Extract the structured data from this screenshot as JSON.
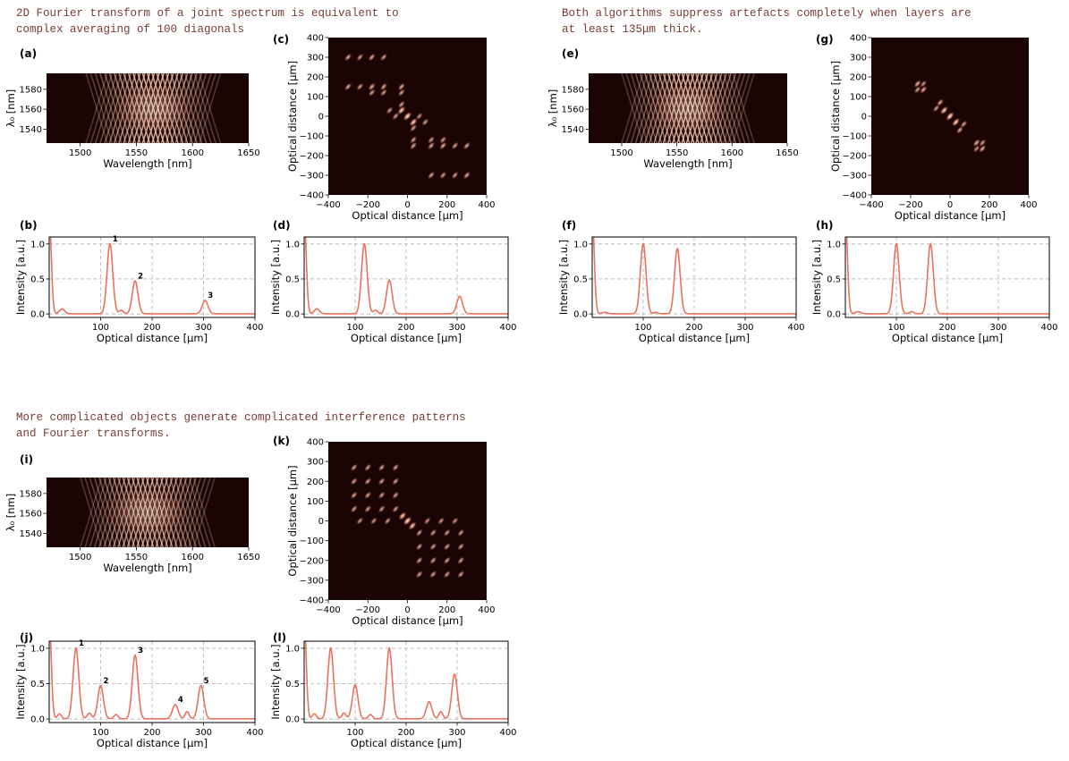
{
  "captions": {
    "top_left": "2D Fourier transform of a joint spectrum is equivalent to\ncomplex averaging of 100 diagonals",
    "top_right": "Both algorithms suppress artefacts completely when layers are\nat least 135μm thick.",
    "bottom_left": "More complicated objects generate complicated interference patterns\nand Fourier transforms."
  },
  "colors": {
    "line": "#e8735c",
    "map_background": "#1a0504",
    "map_peak": "#ffe6d2",
    "grid": "#b0b0b0"
  },
  "chart_data": [
    {
      "id": "a",
      "label": "(a)",
      "type": "heatmap",
      "xlabel": "Wavelength [nm]",
      "ylabel": "λ₀ [nm]",
      "xlim": [
        1470,
        1650
      ],
      "ylim": [
        1526,
        1596
      ],
      "xticks": [
        1500,
        1550,
        1600,
        1650
      ],
      "yticks": [
        1540,
        1560,
        1580
      ],
      "fringes": 4,
      "center": 1565,
      "width": 55
    },
    {
      "id": "b",
      "label": "(b)",
      "type": "line",
      "xlabel": "Optical distance [μm]",
      "ylabel": "Intensity [a.u.]",
      "xlim": [
        0,
        400
      ],
      "ylim": [
        -0.05,
        1.1
      ],
      "xticks": [
        100,
        200,
        300,
        400
      ],
      "yticks": [
        0.0,
        0.5,
        1.0
      ],
      "grid": true,
      "peaks": [
        {
          "x": 118,
          "y": 1.0,
          "w": 5.5,
          "label": "1"
        },
        {
          "x": 167,
          "y": 0.47,
          "w": 5.5,
          "label": "2"
        },
        {
          "x": 303,
          "y": 0.19,
          "w": 5.5,
          "label": "3"
        }
      ],
      "minor": [
        {
          "x": 25,
          "y": 0.07,
          "w": 5
        },
        {
          "x": 140,
          "y": 0.05,
          "w": 4
        }
      ]
    },
    {
      "id": "c",
      "label": "(c)",
      "type": "heatmap",
      "xlabel": "Optical distance [μm]",
      "ylabel": "Optical distance [μm]",
      "xlim": [
        -400,
        400
      ],
      "ylim": [
        -400,
        400
      ],
      "xticks": [
        -400,
        -200,
        0,
        200,
        400
      ],
      "yticks": [
        -400,
        -300,
        -200,
        -100,
        0,
        100,
        200,
        300,
        400
      ],
      "spots": [
        [
          0,
          0,
          1.0
        ],
        [
          -30,
          30,
          0.85
        ],
        [
          30,
          -30,
          0.85
        ],
        [
          -300,
          300,
          0.55
        ],
        [
          -240,
          300,
          0.5
        ],
        [
          -180,
          300,
          0.55
        ],
        [
          -120,
          300,
          0.5
        ],
        [
          -300,
          150,
          0.55
        ],
        [
          -240,
          150,
          0.5
        ],
        [
          -180,
          150,
          0.6
        ],
        [
          -120,
          150,
          0.55
        ],
        [
          -180,
          120,
          0.5
        ],
        [
          -120,
          120,
          0.5
        ],
        [
          -30,
          150,
          0.55
        ],
        [
          -30,
          120,
          0.5
        ],
        [
          -90,
          30,
          0.5
        ],
        [
          -30,
          60,
          0.5
        ],
        [
          -60,
          0,
          0.5
        ],
        [
          90,
          -30,
          0.5
        ],
        [
          30,
          -60,
          0.5
        ],
        [
          60,
          0,
          0.45
        ],
        [
          120,
          -150,
          0.55
        ],
        [
          180,
          -150,
          0.6
        ],
        [
          120,
          -120,
          0.5
        ],
        [
          180,
          -120,
          0.5
        ],
        [
          240,
          -150,
          0.5
        ],
        [
          300,
          -150,
          0.55
        ],
        [
          30,
          -150,
          0.55
        ],
        [
          30,
          -120,
          0.5
        ],
        [
          120,
          -300,
          0.55
        ],
        [
          180,
          -300,
          0.5
        ],
        [
          240,
          -300,
          0.5
        ],
        [
          300,
          -300,
          0.55
        ]
      ]
    },
    {
      "id": "d",
      "label": "(d)",
      "type": "line",
      "xlabel": "Optical distance [μm]",
      "ylabel": "Intensity [a.u.]",
      "xlim": [
        0,
        400
      ],
      "ylim": [
        -0.05,
        1.1
      ],
      "xticks": [
        100,
        200,
        300,
        400
      ],
      "yticks": [
        0.0,
        0.5,
        1.0
      ],
      "grid": true,
      "peaks": [
        {
          "x": 118,
          "y": 1.0,
          "w": 5.5
        },
        {
          "x": 167,
          "y": 0.48,
          "w": 5.5
        },
        {
          "x": 305,
          "y": 0.25,
          "w": 5.5
        }
      ],
      "minor": [
        {
          "x": 25,
          "y": 0.07,
          "w": 5
        },
        {
          "x": 140,
          "y": 0.05,
          "w": 4
        }
      ]
    },
    {
      "id": "e",
      "label": "(e)",
      "type": "heatmap",
      "xlabel": "Wavelength [nm]",
      "ylabel": "λ₀ [nm]",
      "xlim": [
        1470,
        1650
      ],
      "ylim": [
        1526,
        1596
      ],
      "xticks": [
        1500,
        1550,
        1600,
        1650
      ],
      "yticks": [
        1540,
        1560,
        1580
      ],
      "fringes": 3,
      "center": 1560,
      "width": 55
    },
    {
      "id": "f",
      "label": "(f)",
      "type": "line",
      "xlabel": "Optical distance [μm]",
      "ylabel": "Intensity [a.u.]",
      "xlim": [
        0,
        400
      ],
      "ylim": [
        -0.05,
        1.1
      ],
      "xticks": [
        100,
        200,
        300,
        400
      ],
      "yticks": [
        0.0,
        0.5,
        1.0
      ],
      "grid": true,
      "peaks": [
        {
          "x": 100,
          "y": 1.0,
          "w": 5.5
        },
        {
          "x": 167,
          "y": 0.93,
          "w": 5.5
        }
      ],
      "minor": [
        {
          "x": 25,
          "y": 0.02,
          "w": 5
        },
        {
          "x": 125,
          "y": 0.02,
          "w": 4
        }
      ]
    },
    {
      "id": "g",
      "label": "(g)",
      "type": "heatmap",
      "xlabel": "Optical distance [μm]",
      "ylabel": "Optical distance [μm]",
      "xlim": [
        -400,
        400
      ],
      "ylim": [
        -400,
        400
      ],
      "xticks": [
        -400,
        -200,
        0,
        200,
        400
      ],
      "yticks": [
        -400,
        -300,
        -200,
        -100,
        0,
        100,
        200,
        300,
        400
      ],
      "spots": [
        [
          0,
          0,
          1.0
        ],
        [
          -30,
          30,
          0.85
        ],
        [
          30,
          -30,
          0.85
        ],
        [
          -165,
          165,
          0.6
        ],
        [
          -135,
          135,
          0.6
        ],
        [
          -165,
          135,
          0.5
        ],
        [
          -135,
          165,
          0.45
        ],
        [
          -50,
          70,
          0.55
        ],
        [
          -70,
          40,
          0.5
        ],
        [
          50,
          -70,
          0.55
        ],
        [
          70,
          -40,
          0.5
        ],
        [
          165,
          -165,
          0.6
        ],
        [
          135,
          -135,
          0.6
        ],
        [
          165,
          -135,
          0.5
        ],
        [
          135,
          -165,
          0.45
        ]
      ]
    },
    {
      "id": "h",
      "label": "(h)",
      "type": "line",
      "xlabel": "Optical distance [μm]",
      "ylabel": "Intensity [a.u.]",
      "xlim": [
        0,
        400
      ],
      "ylim": [
        -0.05,
        1.1
      ],
      "xticks": [
        100,
        200,
        300,
        400
      ],
      "yticks": [
        0.0,
        0.5,
        1.0
      ],
      "grid": true,
      "peaks": [
        {
          "x": 100,
          "y": 1.0,
          "w": 5.5
        },
        {
          "x": 167,
          "y": 1.0,
          "w": 5.5
        }
      ],
      "minor": [
        {
          "x": 25,
          "y": 0.03,
          "w": 5
        },
        {
          "x": 130,
          "y": 0.03,
          "w": 4
        }
      ]
    },
    {
      "id": "i",
      "label": "(i)",
      "type": "heatmap",
      "xlabel": "Wavelength [nm]",
      "ylabel": "λ₀ [nm]",
      "xlim": [
        1470,
        1650
      ],
      "ylim": [
        1526,
        1596
      ],
      "xticks": [
        1500,
        1550,
        1600,
        1650
      ],
      "yticks": [
        1540,
        1560,
        1580
      ],
      "fringes": 6,
      "center": 1560,
      "width": 60
    },
    {
      "id": "j",
      "label": "(j)",
      "type": "line",
      "xlabel": "Optical distance [μm]",
      "ylabel": "Intensity [a.u.]",
      "xlim": [
        0,
        400
      ],
      "ylim": [
        -0.05,
        1.1
      ],
      "xticks": [
        100,
        200,
        300,
        400
      ],
      "yticks": [
        0.0,
        0.5,
        1.0
      ],
      "grid": true,
      "peaks": [
        {
          "x": 52,
          "y": 1.0,
          "w": 5.5,
          "label": "1"
        },
        {
          "x": 100,
          "y": 0.47,
          "w": 5.5,
          "label": "2"
        },
        {
          "x": 167,
          "y": 0.9,
          "w": 5.5,
          "label": "3"
        },
        {
          "x": 245,
          "y": 0.2,
          "w": 5.5,
          "label": "4"
        },
        {
          "x": 295,
          "y": 0.47,
          "w": 5.5,
          "label": "5"
        }
      ],
      "minor": [
        {
          "x": 20,
          "y": 0.07,
          "w": 4
        },
        {
          "x": 78,
          "y": 0.08,
          "w": 4
        },
        {
          "x": 130,
          "y": 0.06,
          "w": 4
        },
        {
          "x": 268,
          "y": 0.1,
          "w": 4
        }
      ]
    },
    {
      "id": "k",
      "label": "(k)",
      "type": "heatmap",
      "xlabel": "Optical distance [μm]",
      "ylabel": "Optical distance [μm]",
      "xlim": [
        -400,
        400
      ],
      "ylim": [
        -400,
        400
      ],
      "xticks": [
        -400,
        -200,
        0,
        200,
        400
      ],
      "yticks": [
        -400,
        -300,
        -200,
        -100,
        0,
        100,
        200,
        300,
        400
      ],
      "spots": [
        [
          0,
          0,
          1.0
        ],
        [
          -25,
          25,
          0.8
        ],
        [
          25,
          -25,
          0.8
        ],
        [
          -270,
          270,
          0.5
        ],
        [
          -200,
          270,
          0.5
        ],
        [
          -130,
          270,
          0.5
        ],
        [
          -60,
          270,
          0.5
        ],
        [
          -270,
          200,
          0.5
        ],
        [
          -200,
          200,
          0.5
        ],
        [
          -130,
          200,
          0.5
        ],
        [
          -60,
          200,
          0.5
        ],
        [
          -270,
          130,
          0.5
        ],
        [
          -200,
          130,
          0.5
        ],
        [
          -130,
          130,
          0.5
        ],
        [
          -60,
          130,
          0.5
        ],
        [
          -270,
          60,
          0.5
        ],
        [
          -200,
          60,
          0.5
        ],
        [
          -130,
          60,
          0.5
        ],
        [
          -60,
          60,
          0.5
        ],
        [
          -240,
          0,
          0.45
        ],
        [
          -170,
          0,
          0.45
        ],
        [
          -100,
          0,
          0.45
        ],
        [
          270,
          -270,
          0.5
        ],
        [
          200,
          -270,
          0.5
        ],
        [
          130,
          -270,
          0.5
        ],
        [
          60,
          -270,
          0.5
        ],
        [
          270,
          -200,
          0.5
        ],
        [
          200,
          -200,
          0.5
        ],
        [
          130,
          -200,
          0.5
        ],
        [
          60,
          -200,
          0.5
        ],
        [
          270,
          -130,
          0.5
        ],
        [
          200,
          -130,
          0.5
        ],
        [
          130,
          -130,
          0.5
        ],
        [
          60,
          -130,
          0.5
        ],
        [
          270,
          -60,
          0.5
        ],
        [
          200,
          -60,
          0.5
        ],
        [
          130,
          -60,
          0.5
        ],
        [
          60,
          -60,
          0.5
        ],
        [
          240,
          0,
          0.45
        ],
        [
          170,
          0,
          0.45
        ],
        [
          100,
          0,
          0.45
        ]
      ]
    },
    {
      "id": "l",
      "label": "(l)",
      "type": "line",
      "xlabel": "Optical distance [μm]",
      "ylabel": "Intensity [a.u.]",
      "xlim": [
        0,
        400
      ],
      "ylim": [
        -0.05,
        1.1
      ],
      "xticks": [
        100,
        200,
        300,
        400
      ],
      "yticks": [
        0.0,
        0.5,
        1.0
      ],
      "grid": true,
      "peaks": [
        {
          "x": 52,
          "y": 1.0,
          "w": 5.5
        },
        {
          "x": 100,
          "y": 0.48,
          "w": 5.5
        },
        {
          "x": 167,
          "y": 1.0,
          "w": 5.5
        },
        {
          "x": 245,
          "y": 0.24,
          "w": 5.5
        },
        {
          "x": 295,
          "y": 0.63,
          "w": 5.5
        }
      ],
      "minor": [
        {
          "x": 20,
          "y": 0.07,
          "w": 4
        },
        {
          "x": 78,
          "y": 0.08,
          "w": 4
        },
        {
          "x": 130,
          "y": 0.06,
          "w": 4
        },
        {
          "x": 268,
          "y": 0.1,
          "w": 4
        }
      ]
    }
  ]
}
